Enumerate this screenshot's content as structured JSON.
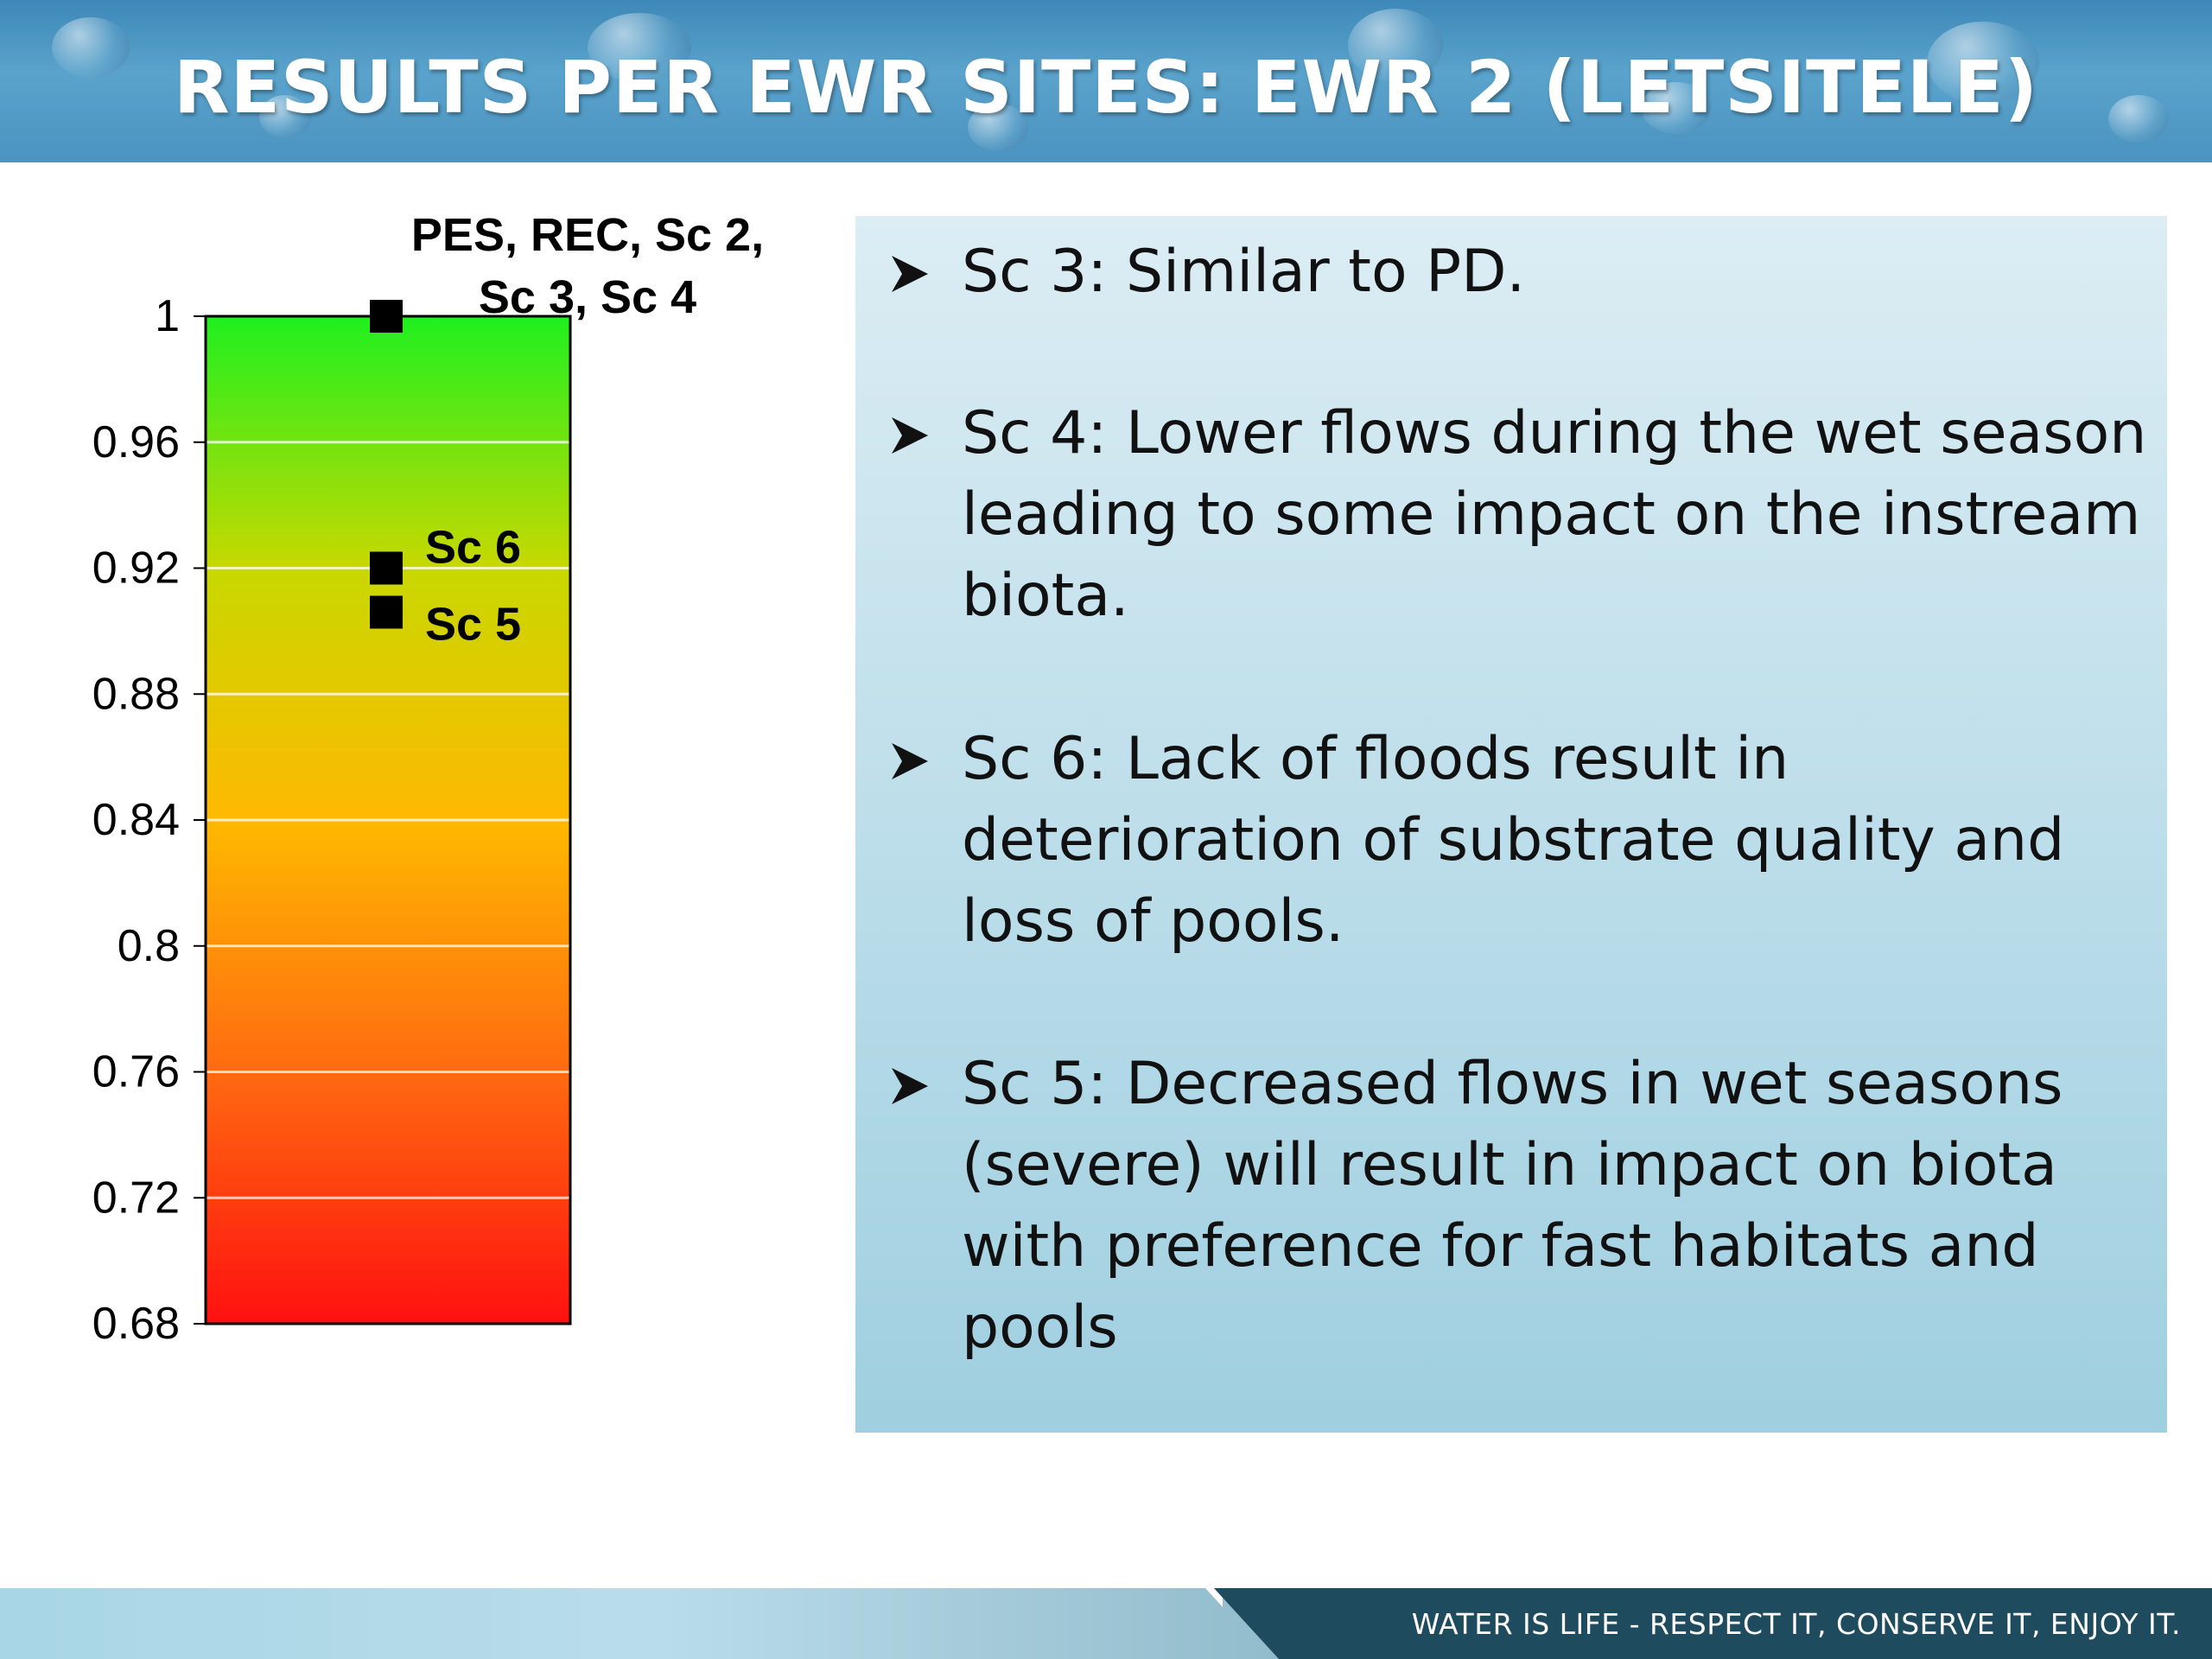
{
  "header": {
    "title": "RESULTS PER EWR SITES: EWR 2 (LETSITELE)"
  },
  "chart_data": {
    "type": "scatter",
    "ylim": [
      0.68,
      1.0
    ],
    "yticks": [
      1,
      0.96,
      0.92,
      0.88,
      0.84,
      0.8,
      0.76,
      0.72,
      0.68
    ],
    "ytick_labels": [
      "1",
      "0.96",
      "0.92",
      "0.88",
      "0.84",
      "0.8",
      "0.76",
      "0.72",
      "0.68"
    ],
    "grid": true,
    "background_gradient": [
      "#ff1010",
      "#ff6a10",
      "#ffb900",
      "#c8d800",
      "#1ff01f"
    ],
    "points": [
      {
        "y": 1.0,
        "label": "PES, REC, Sc 2,\nSc 3, Sc 4"
      },
      {
        "y": 0.92,
        "label": "Sc 6"
      },
      {
        "y": 0.906,
        "label": "Sc 5"
      }
    ]
  },
  "bullets": [
    {
      "text": "Sc 3: Similar to PD."
    },
    {
      "text": "Sc 4: Lower flows during the wet season leading to some impact on the instream biota."
    },
    {
      "text": "Sc 6: Lack of floods result in deterioration of substrate quality and loss of pools."
    },
    {
      "text": "Sc 5: Decreased flows in wet seasons (severe) will result in impact on biota with preference for fast habitats and pools"
    }
  ],
  "footer": {
    "tagline": "WATER IS LIFE - RESPECT IT, CONSERVE IT, ENJOY IT."
  }
}
